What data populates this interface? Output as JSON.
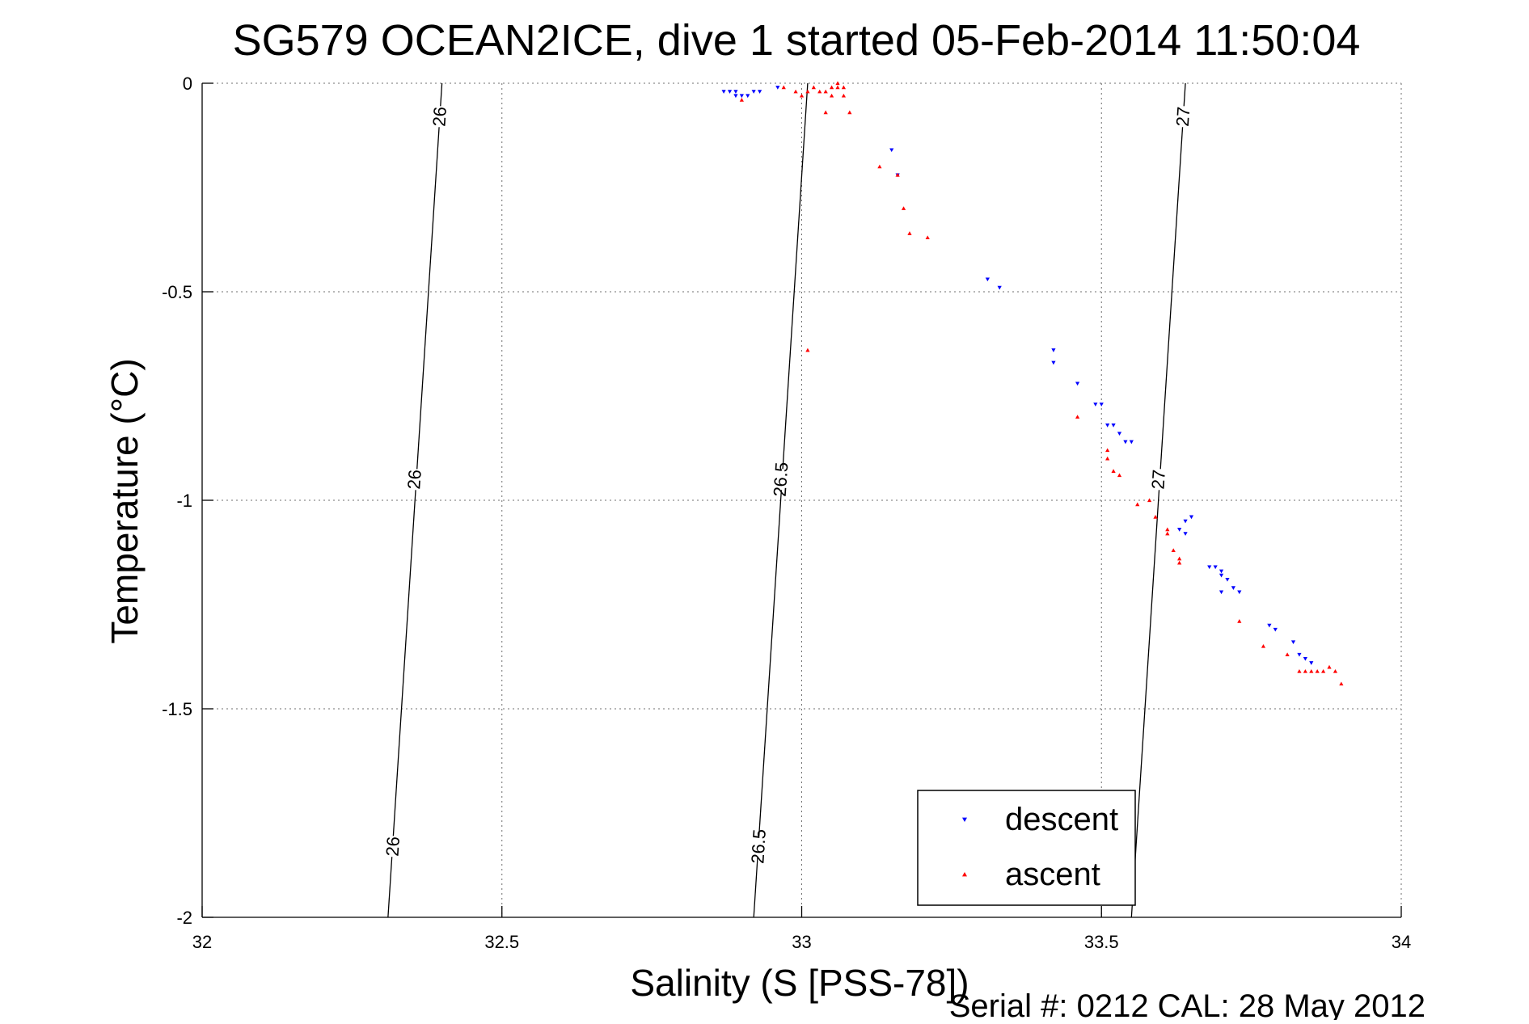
{
  "chart_data": {
    "type": "scatter",
    "title": "SG579 OCEAN2ICE, dive 1 started 05-Feb-2014 11:50:04",
    "xlabel": "Salinity (S [PSS-78])",
    "ylabel": "Temperature (°C)",
    "footer": "Serial #: 0212  CAL: 28 May 2012",
    "xlim": [
      32,
      34
    ],
    "ylim": [
      -2,
      0
    ],
    "xticks": [
      32,
      32.5,
      33,
      33.5,
      34
    ],
    "xtick_labels": [
      "32",
      "32.5",
      "33",
      "33.5",
      "34"
    ],
    "yticks": [
      0,
      -0.5,
      -1,
      -1.5,
      -2
    ],
    "ytick_labels": [
      "0",
      "-0.5",
      "-1",
      "-1.5",
      "-2"
    ],
    "grid": true,
    "legend_position": "bottom-right",
    "series": [
      {
        "name": "descent",
        "color": "#0000ff",
        "marker": "triangle-down",
        "points": [
          [
            32.87,
            -0.02
          ],
          [
            32.88,
            -0.02
          ],
          [
            32.89,
            -0.02
          ],
          [
            32.89,
            -0.03
          ],
          [
            32.9,
            -0.03
          ],
          [
            32.91,
            -0.03
          ],
          [
            32.92,
            -0.02
          ],
          [
            32.93,
            -0.02
          ],
          [
            32.96,
            -0.01
          ],
          [
            33.15,
            -0.16
          ],
          [
            33.16,
            -0.22
          ],
          [
            33.31,
            -0.47
          ],
          [
            33.33,
            -0.49
          ],
          [
            33.42,
            -0.67
          ],
          [
            33.42,
            -0.64
          ],
          [
            33.46,
            -0.72
          ],
          [
            33.49,
            -0.77
          ],
          [
            33.5,
            -0.77
          ],
          [
            33.51,
            -0.82
          ],
          [
            33.52,
            -0.82
          ],
          [
            33.53,
            -0.84
          ],
          [
            33.54,
            -0.86
          ],
          [
            33.55,
            -0.86
          ],
          [
            33.63,
            -1.07
          ],
          [
            33.64,
            -1.05
          ],
          [
            33.64,
            -1.08
          ],
          [
            33.65,
            -1.04
          ],
          [
            33.68,
            -1.16
          ],
          [
            33.69,
            -1.16
          ],
          [
            33.7,
            -1.18
          ],
          [
            33.7,
            -1.17
          ],
          [
            33.7,
            -1.22
          ],
          [
            33.71,
            -1.19
          ],
          [
            33.72,
            -1.21
          ],
          [
            33.73,
            -1.22
          ],
          [
            33.78,
            -1.3
          ],
          [
            33.79,
            -1.31
          ],
          [
            33.82,
            -1.34
          ],
          [
            33.83,
            -1.37
          ],
          [
            33.84,
            -1.38
          ],
          [
            33.85,
            -1.39
          ]
        ]
      },
      {
        "name": "ascent",
        "color": "#ff0000",
        "marker": "triangle-up",
        "points": [
          [
            32.9,
            -0.04
          ],
          [
            32.97,
            -0.01
          ],
          [
            32.99,
            -0.02
          ],
          [
            33.0,
            -0.03
          ],
          [
            33.01,
            -0.02
          ],
          [
            33.02,
            -0.01
          ],
          [
            33.03,
            -0.02
          ],
          [
            33.04,
            -0.02
          ],
          [
            33.05,
            -0.01
          ],
          [
            33.05,
            -0.03
          ],
          [
            33.06,
            -0.01
          ],
          [
            33.06,
            0.0
          ],
          [
            33.07,
            -0.01
          ],
          [
            33.07,
            -0.03
          ],
          [
            33.08,
            -0.07
          ],
          [
            33.04,
            -0.07
          ],
          [
            33.01,
            -0.64
          ],
          [
            33.13,
            -0.2
          ],
          [
            33.16,
            -0.22
          ],
          [
            33.17,
            -0.3
          ],
          [
            33.18,
            -0.36
          ],
          [
            33.21,
            -0.37
          ],
          [
            33.46,
            -0.8
          ],
          [
            33.51,
            -0.88
          ],
          [
            33.51,
            -0.9
          ],
          [
            33.52,
            -0.93
          ],
          [
            33.53,
            -0.94
          ],
          [
            33.56,
            -1.01
          ],
          [
            33.58,
            -1.0
          ],
          [
            33.59,
            -1.04
          ],
          [
            33.61,
            -1.07
          ],
          [
            33.61,
            -1.08
          ],
          [
            33.62,
            -1.12
          ],
          [
            33.63,
            -1.14
          ],
          [
            33.63,
            -1.15
          ],
          [
            33.73,
            -1.29
          ],
          [
            33.77,
            -1.35
          ],
          [
            33.81,
            -1.37
          ],
          [
            33.83,
            -1.41
          ],
          [
            33.84,
            -1.41
          ],
          [
            33.85,
            -1.41
          ],
          [
            33.86,
            -1.41
          ],
          [
            33.87,
            -1.41
          ],
          [
            33.88,
            -1.4
          ],
          [
            33.89,
            -1.41
          ],
          [
            33.9,
            -1.44
          ]
        ]
      }
    ],
    "density_contours": [
      {
        "level": "26",
        "points": [
          [
            32.4,
            0
          ],
          [
            32.31,
            -2
          ]
        ],
        "labels": [
          {
            "text": "26",
            "x": 32.396,
            "y": -0.08
          },
          {
            "text": "26",
            "x": 32.354,
            "y": -0.95
          },
          {
            "text": "26",
            "x": 32.318,
            "y": -1.83
          }
        ]
      },
      {
        "level": "26.5",
        "points": [
          [
            33.01,
            0
          ],
          [
            32.92,
            -2
          ]
        ],
        "labels": [
          {
            "text": "26.5",
            "x": 32.965,
            "y": -0.95
          },
          {
            "text": "26.5",
            "x": 32.928,
            "y": -1.83
          }
        ]
      },
      {
        "level": "27",
        "points": [
          [
            33.64,
            0
          ],
          [
            33.55,
            -2
          ]
        ],
        "labels": [
          {
            "text": "27",
            "x": 33.636,
            "y": -0.08
          },
          {
            "text": "27",
            "x": 33.595,
            "y": -0.95
          }
        ]
      }
    ]
  }
}
